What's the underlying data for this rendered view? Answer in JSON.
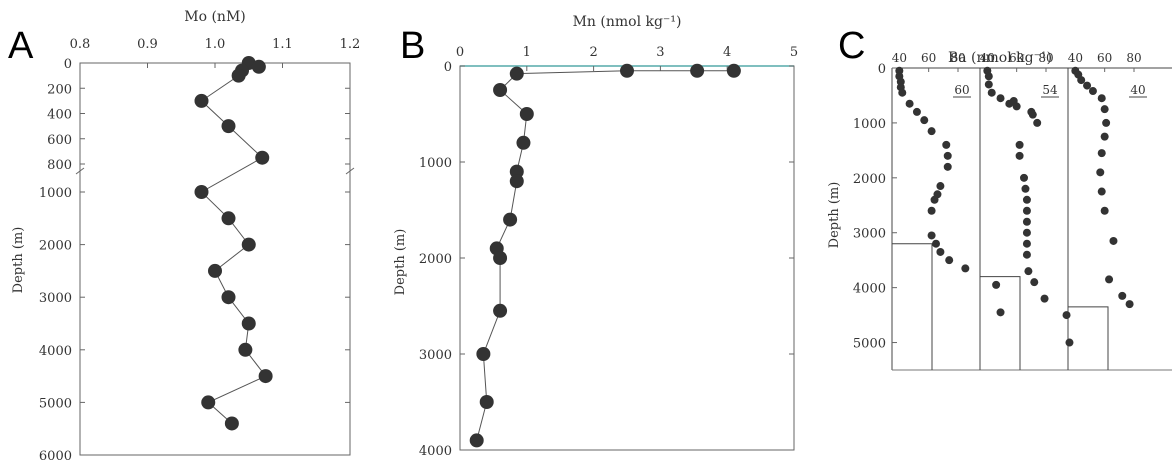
{
  "chart_data": [
    {
      "panel": "A",
      "type": "line",
      "xlabel": "Mo (nM)",
      "ylabel": "Depth (m)",
      "xlim": [
        0.8,
        1.2
      ],
      "xticks": [
        "0.8",
        "0.9",
        "1.0",
        "1.1",
        "1.2"
      ],
      "upper_ylim": [
        0,
        800
      ],
      "upper_yticks": [
        "0",
        "200",
        "400",
        "600",
        "800"
      ],
      "lower_ylim": [
        1000,
        6000
      ],
      "lower_yticks": [
        "1000",
        "2000",
        "3000",
        "4000",
        "5000",
        "6000"
      ],
      "points": [
        {
          "x": 1.05,
          "y": 0
        },
        {
          "x": 1.065,
          "y": 30
        },
        {
          "x": 1.04,
          "y": 60
        },
        {
          "x": 1.035,
          "y": 100
        },
        {
          "x": 0.98,
          "y": 300
        },
        {
          "x": 1.02,
          "y": 500
        },
        {
          "x": 1.07,
          "y": 750
        },
        {
          "x": 0.98,
          "y": 1000
        },
        {
          "x": 1.02,
          "y": 1500
        },
        {
          "x": 1.05,
          "y": 2000
        },
        {
          "x": 1.0,
          "y": 2500
        },
        {
          "x": 1.02,
          "y": 3000
        },
        {
          "x": 1.05,
          "y": 3500
        },
        {
          "x": 1.045,
          "y": 4000
        },
        {
          "x": 1.075,
          "y": 4500
        },
        {
          "x": 0.99,
          "y": 5000
        },
        {
          "x": 1.025,
          "y": 5400
        }
      ]
    },
    {
      "panel": "B",
      "type": "line",
      "xlabel": "Mn (nmol kg⁻¹)",
      "ylabel": "Depth (m)",
      "xlim": [
        0,
        5
      ],
      "xticks": [
        "0",
        "1",
        "2",
        "3",
        "4",
        "5"
      ],
      "ylim": [
        0,
        4000
      ],
      "yticks": [
        "0",
        "1000",
        "2000",
        "3000",
        "4000"
      ],
      "points": [
        {
          "x": 4.1,
          "y": 50
        },
        {
          "x": 3.55,
          "y": 50
        },
        {
          "x": 2.5,
          "y": 50
        },
        {
          "x": 0.85,
          "y": 80
        },
        {
          "x": 0.6,
          "y": 250
        },
        {
          "x": 1.0,
          "y": 500
        },
        {
          "x": 0.95,
          "y": 800
        },
        {
          "x": 0.85,
          "y": 1100
        },
        {
          "x": 0.85,
          "y": 1200
        },
        {
          "x": 0.75,
          "y": 1600
        },
        {
          "x": 0.55,
          "y": 1900
        },
        {
          "x": 0.6,
          "y": 2000
        },
        {
          "x": 0.6,
          "y": 2550
        },
        {
          "x": 0.35,
          "y": 3000
        },
        {
          "x": 0.4,
          "y": 3500
        },
        {
          "x": 0.25,
          "y": 3900
        }
      ]
    },
    {
      "panel": "C",
      "type": "scatter",
      "xlabel": "Ba (nmol kg⁻¹)",
      "ylabel": "Depth (m)",
      "ylim": [
        0,
        5500
      ],
      "yticks": [
        "0",
        "1000",
        "2000",
        "3000",
        "4000",
        "5000"
      ],
      "subpanels": [
        {
          "label": "60",
          "xlim": [
            35,
            95
          ],
          "xticks": [
            "40",
            "60",
            "80"
          ],
          "bottom_depth": 3200,
          "points": [
            {
              "x": 40,
              "y": 50
            },
            {
              "x": 40,
              "y": 150
            },
            {
              "x": 41,
              "y": 250
            },
            {
              "x": 41,
              "y": 350
            },
            {
              "x": 42,
              "y": 450
            },
            {
              "x": 47,
              "y": 650
            },
            {
              "x": 52,
              "y": 800
            },
            {
              "x": 57,
              "y": 950
            },
            {
              "x": 62,
              "y": 1150
            },
            {
              "x": 72,
              "y": 1400
            },
            {
              "x": 73,
              "y": 1600
            },
            {
              "x": 73,
              "y": 1800
            },
            {
              "x": 68,
              "y": 2150
            },
            {
              "x": 66,
              "y": 2300
            },
            {
              "x": 64,
              "y": 2400
            },
            {
              "x": 62,
              "y": 2600
            },
            {
              "x": 62,
              "y": 3050
            },
            {
              "x": 65,
              "y": 3200
            },
            {
              "x": 68,
              "y": 3350
            },
            {
              "x": 74,
              "y": 3500
            },
            {
              "x": 85,
              "y": 3650
            }
          ]
        },
        {
          "label": "54",
          "xlim": [
            35,
            95
          ],
          "xticks": [
            "40",
            "60",
            "80"
          ],
          "bottom_depth": 3800,
          "points": [
            {
              "x": 40,
              "y": 50
            },
            {
              "x": 41,
              "y": 150
            },
            {
              "x": 41,
              "y": 300
            },
            {
              "x": 43,
              "y": 450
            },
            {
              "x": 49,
              "y": 550
            },
            {
              "x": 55,
              "y": 650
            },
            {
              "x": 58,
              "y": 600
            },
            {
              "x": 60,
              "y": 700
            },
            {
              "x": 70,
              "y": 800
            },
            {
              "x": 71,
              "y": 850
            },
            {
              "x": 74,
              "y": 1000
            },
            {
              "x": 62,
              "y": 1400
            },
            {
              "x": 62,
              "y": 1600
            },
            {
              "x": 65,
              "y": 2000
            },
            {
              "x": 66,
              "y": 2200
            },
            {
              "x": 67,
              "y": 2400
            },
            {
              "x": 67,
              "y": 2600
            },
            {
              "x": 67,
              "y": 2800
            },
            {
              "x": 67,
              "y": 3000
            },
            {
              "x": 67,
              "y": 3200
            },
            {
              "x": 67,
              "y": 3400
            },
            {
              "x": 68,
              "y": 3700
            },
            {
              "x": 72,
              "y": 3900
            },
            {
              "x": 79,
              "y": 4200
            },
            {
              "x": 46,
              "y": 3950
            },
            {
              "x": 49,
              "y": 4450
            }
          ]
        },
        {
          "label": "40",
          "xlim": [
            35,
            95
          ],
          "xticks": [
            "40",
            "60",
            "80"
          ],
          "bottom_depth": 4350,
          "points": [
            {
              "x": 40,
              "y": 50
            },
            {
              "x": 42,
              "y": 120
            },
            {
              "x": 44,
              "y": 220
            },
            {
              "x": 48,
              "y": 320
            },
            {
              "x": 52,
              "y": 420
            },
            {
              "x": 58,
              "y": 550
            },
            {
              "x": 60,
              "y": 750
            },
            {
              "x": 61,
              "y": 1000
            },
            {
              "x": 60,
              "y": 1250
            },
            {
              "x": 58,
              "y": 1550
            },
            {
              "x": 57,
              "y": 1900
            },
            {
              "x": 58,
              "y": 2250
            },
            {
              "x": 60,
              "y": 2600
            },
            {
              "x": 66,
              "y": 3150
            },
            {
              "x": 63,
              "y": 3850
            },
            {
              "x": 72,
              "y": 4150
            },
            {
              "x": 77,
              "y": 4300
            },
            {
              "x": 34,
              "y": 4500
            },
            {
              "x": 36,
              "y": 5000
            }
          ]
        }
      ]
    }
  ]
}
